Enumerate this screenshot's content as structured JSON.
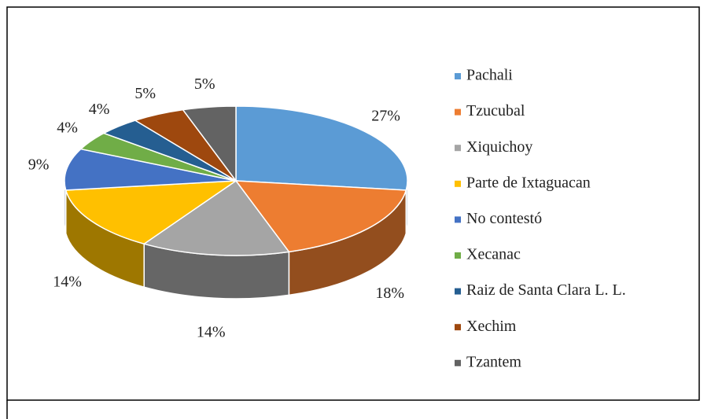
{
  "chart_data": {
    "type": "pie",
    "legend": "right",
    "categories": [
      "Pachali",
      "Tzucubal",
      "Xiquichoy",
      "Parte de Ixtaguacan",
      "No contestó",
      "Xecanac",
      "Raiz de Santa Clara L. L.",
      "Xechim",
      "Tzantem"
    ],
    "values": [
      27,
      18,
      14,
      14,
      9,
      4,
      4,
      5,
      5
    ],
    "value_labels": [
      "27%",
      "18%",
      "14%",
      "14%",
      "9%",
      "4%",
      "4%",
      "5%",
      "5%"
    ],
    "colors": [
      "#5b9bd5",
      "#ed7d31",
      "#a5a5a5",
      "#ffc000",
      "#4472c4",
      "#70ad47",
      "#255e91",
      "#9e480e",
      "#636363"
    ]
  }
}
